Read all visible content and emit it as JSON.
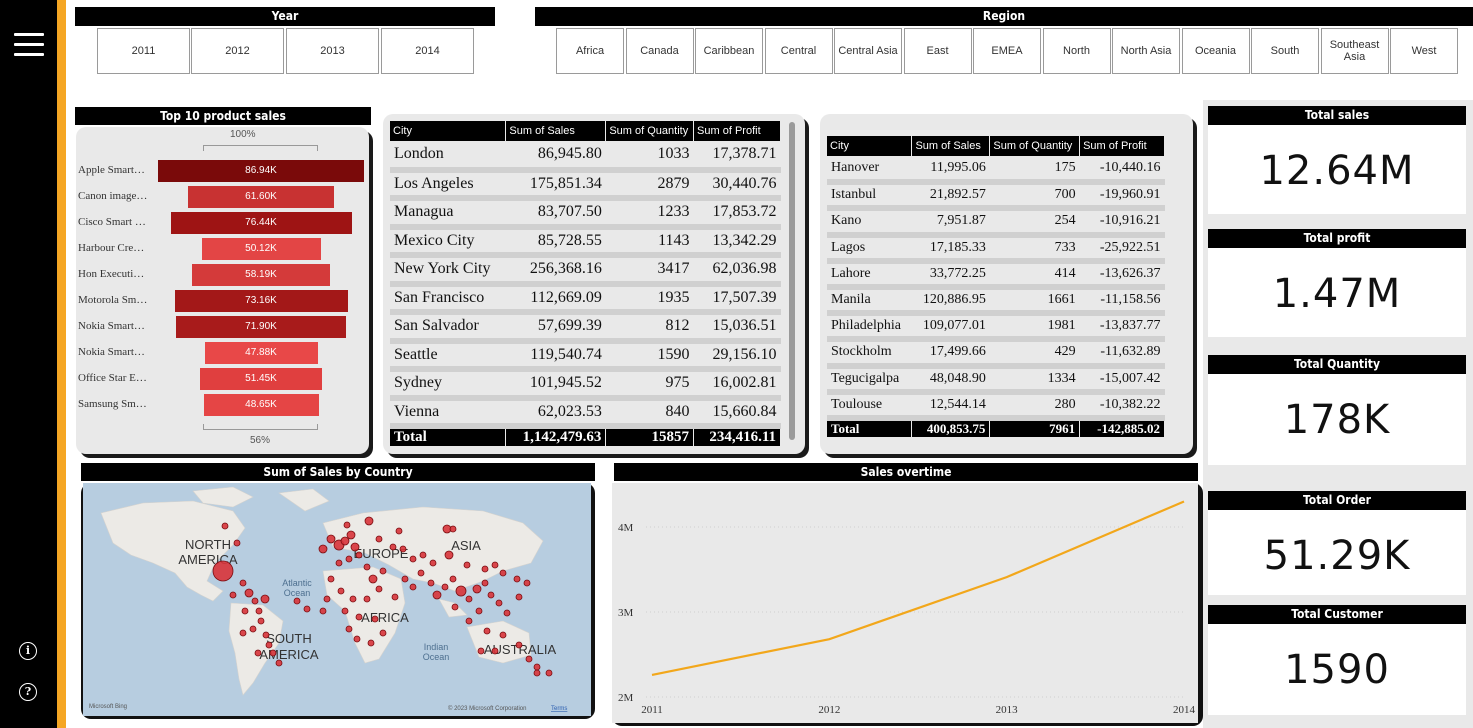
{
  "slicers": {
    "year": {
      "title": "Year",
      "options": [
        "2011",
        "2012",
        "2013",
        "2014"
      ]
    },
    "region": {
      "title": "Region",
      "options": [
        "Africa",
        "Canada",
        "Caribbean",
        "Central",
        "Central Asia",
        "East",
        "EMEA",
        "North",
        "North Asia",
        "Oceania",
        "South",
        "Southeast Asia",
        "West"
      ]
    }
  },
  "funnel": {
    "title": "Top 10 product sales",
    "top_pct": "100%",
    "bottom_pct": "56%",
    "items": [
      {
        "label": "Apple Smart…",
        "value": "86.94K",
        "num": 86.94,
        "color": "#7a0a0a"
      },
      {
        "label": "Canon image…",
        "value": "61.60K",
        "num": 61.6,
        "color": "#c83232"
      },
      {
        "label": "Cisco Smart …",
        "value": "76.44K",
        "num": 76.44,
        "color": "#9e1414"
      },
      {
        "label": "Harbour Cre…",
        "value": "50.12K",
        "num": 50.12,
        "color": "#e34545"
      },
      {
        "label": "Hon Executi…",
        "value": "58.19K",
        "num": 58.19,
        "color": "#d43a3a"
      },
      {
        "label": "Motorola Sm…",
        "value": "73.16K",
        "num": 73.16,
        "color": "#a31818"
      },
      {
        "label": "Nokia Smart…",
        "value": "71.90K",
        "num": 71.9,
        "color": "#a81b1b"
      },
      {
        "label": "Nokia Smart…",
        "value": "47.88K",
        "num": 47.88,
        "color": "#e84848"
      },
      {
        "label": "Office Star E…",
        "value": "51.45K",
        "num": 51.45,
        "color": "#e03f3f"
      },
      {
        "label": "Samsung Sm…",
        "value": "48.65K",
        "num": 48.65,
        "color": "#e54545"
      }
    ]
  },
  "table1": {
    "headers": [
      "City",
      "Sum of Sales",
      "Sum of Quantity",
      "Sum of Profit"
    ],
    "rows": [
      [
        "London",
        "86,945.80",
        "1033",
        "17,378.71"
      ],
      [
        "Los Angeles",
        "175,851.34",
        "2879",
        "30,440.76"
      ],
      [
        "Managua",
        "83,707.50",
        "1233",
        "17,853.72"
      ],
      [
        "Mexico City",
        "85,728.55",
        "1143",
        "13,342.29"
      ],
      [
        "New York City",
        "256,368.16",
        "3417",
        "62,036.98"
      ],
      [
        "San Francisco",
        "112,669.09",
        "1935",
        "17,507.39"
      ],
      [
        "San Salvador",
        "57,699.39",
        "812",
        "15,036.51"
      ],
      [
        "Seattle",
        "119,540.74",
        "1590",
        "29,156.10"
      ],
      [
        "Sydney",
        "101,945.52",
        "975",
        "16,002.81"
      ],
      [
        "Vienna",
        "62,023.53",
        "840",
        "15,660.84"
      ]
    ],
    "total": [
      "Total",
      "1,142,479.63",
      "15857",
      "234,416.11"
    ]
  },
  "table2": {
    "headers": [
      "City",
      "Sum of Sales",
      "Sum of Quantity",
      "Sum of Profit"
    ],
    "rows": [
      [
        "Hanover",
        "11,995.06",
        "175",
        "-10,440.16"
      ],
      [
        "Istanbul",
        "21,892.57",
        "700",
        "-19,960.91"
      ],
      [
        "Kano",
        "7,951.87",
        "254",
        "-10,916.21"
      ],
      [
        "Lagos",
        "17,185.33",
        "733",
        "-25,922.51"
      ],
      [
        "Lahore",
        "33,772.25",
        "414",
        "-13,626.37"
      ],
      [
        "Manila",
        "120,886.95",
        "1661",
        "-11,158.56"
      ],
      [
        "Philadelphia",
        "109,077.01",
        "1981",
        "-13,837.77"
      ],
      [
        "Stockholm",
        "17,499.66",
        "429",
        "-11,632.89"
      ],
      [
        "Tegucigalpa",
        "48,048.90",
        "1334",
        "-15,007.42"
      ],
      [
        "Toulouse",
        "12,544.14",
        "280",
        "-10,382.22"
      ]
    ],
    "total": [
      "Total",
      "400,853.75",
      "7961",
      "-142,885.02"
    ]
  },
  "map": {
    "title": "Sum of Sales by Country",
    "labels": {
      "na": "NORTH AMERICA",
      "sa": "SOUTH AMERICA",
      "eu": "EUROPE",
      "as": "ASIA",
      "af": "AFRICA",
      "au": "AUSTRALIA",
      "atl": "Atlantic Ocean",
      "ind": "Indian Ocean"
    },
    "brand": "Microsoft Bing",
    "copyright": "© 2023 Microsoft Corporation",
    "terms": "Terms"
  },
  "line": {
    "title": "Sales overtime"
  },
  "chart_data": {
    "type": "line",
    "title": "Sales overtime",
    "categories": [
      "2011",
      "2012",
      "2013",
      "2014"
    ],
    "values": [
      2.26,
      2.68,
      3.41,
      4.3
    ],
    "y_ticks": [
      "2M",
      "3M",
      "4M"
    ],
    "ylim": [
      2,
      4.4
    ],
    "xlabel": "",
    "ylabel": "",
    "color": "#f2a71b"
  },
  "kpis": [
    {
      "title": "Total sales",
      "value": "12.64M"
    },
    {
      "title": "Total profit",
      "value": "1.47M"
    },
    {
      "title": "Total Quantity",
      "value": "178K"
    },
    {
      "title": "Total Order",
      "value": "51.29K"
    },
    {
      "title": "Total Customer",
      "value": "1590"
    }
  ],
  "rail": {
    "info_icon": "info-icon",
    "help_icon": "help-icon",
    "menu_icon": "hamburger-icon"
  }
}
